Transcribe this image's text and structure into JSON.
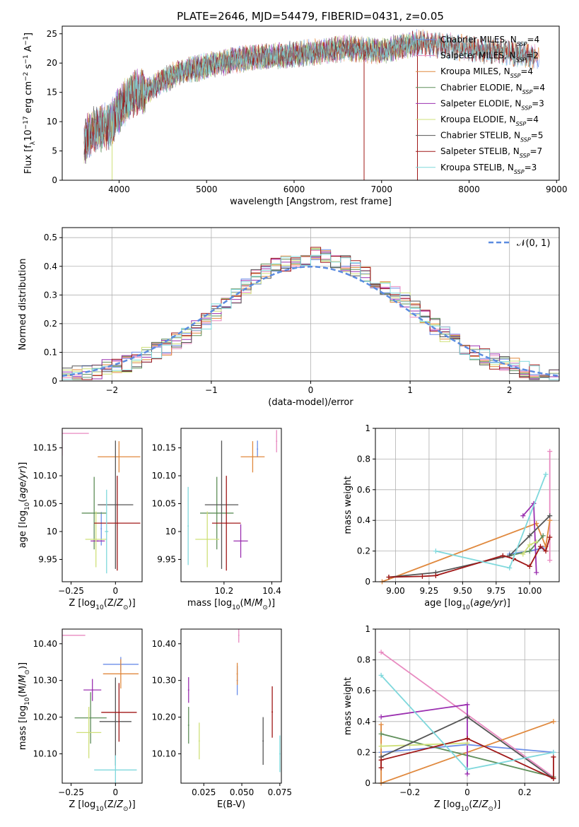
{
  "figure": {
    "title": "PLATE=2646, MJD=54479, FIBERID=0431, z=0.05"
  },
  "palette": {
    "Chabrier MILES": "#6b8ee8",
    "Salpeter MILES": "#e88ac0",
    "Kroupa MILES": "#e0893e",
    "Chabrier ELODIE": "#5f8f5a",
    "Salpeter ELODIE": "#9b30b0",
    "Kroupa ELODIE": "#cfe07a",
    "Chabrier STELIB": "#555555",
    "Salpeter STELIB": "#a01818",
    "Kroupa STELIB": "#7fd8dc",
    "gaussian": "#5b8be0"
  },
  "chart_data": [
    {
      "id": "spectrum",
      "type": "line",
      "xlabel": "wavelength [Angstrom, rest frame]",
      "ylabel": "Flux [f_λ10^-17 erg cm^-2 s^-1 A^-1]",
      "xlim": [
        3350,
        9030
      ],
      "ylim": [
        0,
        26.3
      ],
      "xticks": [
        4000,
        5000,
        6000,
        7000,
        8000,
        9000
      ],
      "yticks": [
        0,
        5,
        10,
        15,
        20,
        25
      ],
      "legend_position": "top-right",
      "legend": [
        {
          "model": "Chabrier MILES",
          "nssp": "4"
        },
        {
          "model": "Salpeter MILES",
          "nssp": "2"
        },
        {
          "model": "Kroupa MILES",
          "nssp": "4"
        },
        {
          "model": "Chabrier ELODIE",
          "nssp": "4"
        },
        {
          "model": "Salpeter ELODIE",
          "nssp": "3"
        },
        {
          "model": "Kroupa ELODIE",
          "nssp": "4"
        },
        {
          "model": "Chabrier STELIB",
          "nssp": "5"
        },
        {
          "model": "Salpeter STELIB",
          "nssp": "7"
        },
        {
          "model": "Kroupa STELIB",
          "nssp": "3"
        }
      ],
      "continuum": {
        "x": [
          3600,
          3700,
          3800,
          3900,
          4000,
          4100,
          4200,
          4300,
          4400,
          4500,
          4700,
          5000,
          5300,
          5600,
          6000,
          6300,
          6600,
          7000,
          7400,
          7700,
          8000,
          8300,
          8600,
          8800
        ],
        "y": [
          6.5,
          8.5,
          9.0,
          9.5,
          12.0,
          14.0,
          15.0,
          15.0,
          16.0,
          17.0,
          18.5,
          19.5,
          20.5,
          21.0,
          21.5,
          22.0,
          22.5,
          22.0,
          23.5,
          23.0,
          22.5,
          22.0,
          21.5,
          21.0
        ]
      }
    },
    {
      "id": "residuals",
      "type": "histogram",
      "xlabel": "(data-model)/error",
      "ylabel": "Normed distribution",
      "xlim": [
        -2.5,
        2.5
      ],
      "ylim": [
        0,
        0.535
      ],
      "xticks": [
        -2,
        -1,
        0,
        1,
        2
      ],
      "yticks": [
        0.0,
        0.1,
        0.2,
        0.3,
        0.4,
        0.5
      ],
      "grid": true,
      "legend_position": "top-right",
      "legend_label": "𝒩(0, 1)",
      "bin_edges": [
        -2.5,
        -2.4,
        -2.3,
        -2.2,
        -2.1,
        -2.0,
        -1.9,
        -1.8,
        -1.7,
        -1.6,
        -1.5,
        -1.4,
        -1.3,
        -1.2,
        -1.1,
        -1.0,
        -0.9,
        -0.8,
        -0.7,
        -0.6,
        -0.5,
        -0.4,
        -0.3,
        -0.2,
        -0.1,
        0.0,
        0.1,
        0.2,
        0.3,
        0.4,
        0.5,
        0.6,
        0.7,
        0.8,
        0.9,
        1.0,
        1.1,
        1.2,
        1.3,
        1.4,
        1.5,
        1.6,
        1.7,
        1.8,
        1.9,
        2.0,
        2.1,
        2.2,
        2.3,
        2.4,
        2.5
      ],
      "density_envelope": [
        0.02,
        0.025,
        0.03,
        0.035,
        0.045,
        0.05,
        0.06,
        0.075,
        0.09,
        0.105,
        0.12,
        0.14,
        0.16,
        0.185,
        0.21,
        0.24,
        0.27,
        0.3,
        0.33,
        0.36,
        0.38,
        0.4,
        0.41,
        0.42,
        0.43,
        0.44,
        0.43,
        0.42,
        0.41,
        0.39,
        0.37,
        0.35,
        0.33,
        0.3,
        0.28,
        0.25,
        0.22,
        0.19,
        0.165,
        0.14,
        0.12,
        0.1,
        0.085,
        0.07,
        0.06,
        0.05,
        0.04,
        0.03,
        0.025,
        0.02
      ]
    },
    {
      "id": "age_vs_Z",
      "type": "scatter",
      "xlabel": "Z [log10(Z/Z⊙)]",
      "ylabel": "age  [log10(age/yr)]",
      "xlim": [
        -0.3,
        0.15
      ],
      "ylim": [
        9.91,
        10.185
      ],
      "xticks": [
        -0.25,
        0.0
      ],
      "yticks": [
        9.95,
        10.0,
        10.05,
        10.1,
        10.15
      ],
      "points": [
        {
          "model": "Chabrier MILES",
          "x": -0.08,
          "xerr": 0.0,
          "y": 10.005,
          "yerr": 0.03
        },
        {
          "model": "Salpeter MILES",
          "x": -0.3,
          "xerr": 0.15,
          "y": 10.176,
          "yerr": 0.04
        },
        {
          "model": "Kroupa MILES",
          "x": 0.02,
          "xerr": 0.12,
          "y": 10.134,
          "yerr": 0.028
        },
        {
          "model": "Chabrier ELODIE",
          "x": -0.12,
          "xerr": 0.07,
          "y": 10.033,
          "yerr": 0.065
        },
        {
          "model": "Salpeter ELODIE",
          "x": -0.1,
          "xerr": 0.04,
          "y": 9.983,
          "yerr": 0.0
        },
        {
          "model": "Kroupa ELODIE",
          "x": -0.11,
          "xerr": 0.06,
          "y": 9.986,
          "yerr": 0.05
        },
        {
          "model": "Chabrier STELIB",
          "x": 0.0,
          "xerr": 0.1,
          "y": 10.048,
          "yerr": 0.115
        },
        {
          "model": "Salpeter STELIB",
          "x": 0.01,
          "xerr": 0.13,
          "y": 10.015,
          "yerr": 0.085
        },
        {
          "model": "Kroupa STELIB",
          "x": -0.05,
          "xerr": 0.01,
          "y": 10.0,
          "yerr": 0.075
        }
      ]
    },
    {
      "id": "age_vs_mass",
      "type": "scatter",
      "xlabel": "mass [log10(M/M⊙)]",
      "ylabel": "",
      "xlim": [
        10.02,
        10.44
      ],
      "ylim": [
        9.91,
        10.185
      ],
      "xticks": [
        10.2,
        10.4
      ],
      "yticks": [
        9.95,
        10.0,
        10.05,
        10.1,
        10.15
      ],
      "points": [
        {
          "model": "Chabrier MILES",
          "x": 10.34,
          "xerr": 0.0,
          "y": 10.148,
          "yerr": 0.015
        },
        {
          "model": "Salpeter MILES",
          "x": 10.42,
          "xerr": 0.0,
          "y": 10.162,
          "yerr": 0.02
        },
        {
          "model": "Kroupa MILES",
          "x": 10.32,
          "xerr": 0.05,
          "y": 10.134,
          "yerr": 0.028
        },
        {
          "model": "Chabrier ELODIE",
          "x": 10.17,
          "xerr": 0.07,
          "y": 10.033,
          "yerr": 0.065
        },
        {
          "model": "Salpeter ELODIE",
          "x": 10.27,
          "xerr": 0.03,
          "y": 9.983,
          "yerr": 0.03
        },
        {
          "model": "Kroupa ELODIE",
          "x": 10.13,
          "xerr": 0.05,
          "y": 9.986,
          "yerr": 0.05
        },
        {
          "model": "Chabrier STELIB",
          "x": 10.19,
          "xerr": 0.07,
          "y": 10.048,
          "yerr": 0.115
        },
        {
          "model": "Salpeter STELIB",
          "x": 10.21,
          "xerr": 0.06,
          "y": 10.015,
          "yerr": 0.085
        },
        {
          "model": "Kroupa STELIB",
          "x": 10.05,
          "xerr": 0.0,
          "y": 10.01,
          "yerr": 0.07
        }
      ]
    },
    {
      "id": "weight_vs_age",
      "type": "line",
      "xlabel": "age  [log10(age/yr)]",
      "ylabel": "mass weight",
      "xlim": [
        8.85,
        10.22
      ],
      "ylim": [
        0.0,
        1.0
      ],
      "xticks": [
        9.0,
        9.25,
        9.5,
        9.75,
        10.0
      ],
      "xticklabels": [
        "9.00",
        "9.25",
        "9.50",
        "9.75",
        "10.00"
      ],
      "yticks": [
        0.0,
        0.2,
        0.4,
        0.6,
        0.8,
        1.0
      ],
      "grid": true,
      "series": [
        {
          "model": "Chabrier MILES",
          "x": [
            9.85,
            10.0,
            10.1
          ],
          "y": [
            0.18,
            0.2,
            0.22
          ]
        },
        {
          "model": "Salpeter MILES",
          "x": [
            10.15,
            10.15
          ],
          "y": [
            0.14,
            0.85
          ]
        },
        {
          "model": "Kroupa MILES",
          "x": [
            8.9,
            10.05,
            10.12,
            10.15
          ],
          "y": [
            0.0,
            0.38,
            0.23,
            0.4
          ]
        },
        {
          "model": "Chabrier ELODIE",
          "x": [
            9.85,
            10.0,
            10.1
          ],
          "y": [
            0.17,
            0.2,
            0.3
          ]
        },
        {
          "model": "Salpeter ELODIE",
          "x": [
            9.95,
            10.03,
            10.05
          ],
          "y": [
            0.43,
            0.51,
            0.06
          ]
        },
        {
          "model": "Kroupa ELODIE",
          "x": [
            9.95,
            10.0,
            10.05
          ],
          "y": [
            0.18,
            0.24,
            0.26
          ]
        },
        {
          "model": "Chabrier STELIB",
          "x": [
            8.95,
            9.3,
            9.85,
            10.0,
            10.15
          ],
          "y": [
            0.03,
            0.06,
            0.17,
            0.3,
            0.43
          ]
        },
        {
          "model": "Salpeter STELIB",
          "x": [
            8.95,
            9.2,
            9.3,
            9.8,
            9.88,
            10.0,
            10.08,
            10.12,
            10.15
          ],
          "y": [
            0.03,
            0.035,
            0.04,
            0.17,
            0.15,
            0.1,
            0.23,
            0.2,
            0.29
          ]
        },
        {
          "model": "Kroupa STELIB",
          "x": [
            9.3,
            9.85,
            10.12
          ],
          "y": [
            0.2,
            0.09,
            0.7
          ]
        }
      ]
    },
    {
      "id": "mass_vs_Z",
      "type": "scatter",
      "xlabel": "Z [log10(Z/Z⊙)]",
      "ylabel": "mass [log10(M/M⊙)]",
      "xlim": [
        -0.3,
        0.15
      ],
      "ylim": [
        10.02,
        10.44
      ],
      "xticks": [
        -0.25,
        0.0
      ],
      "yticks": [
        10.1,
        10.2,
        10.3,
        10.4
      ],
      "points": [
        {
          "model": "Chabrier MILES",
          "x": 0.03,
          "xerr": 0.1,
          "y": 10.344,
          "yerr": 0.02
        },
        {
          "model": "Salpeter MILES",
          "x": -0.3,
          "xerr": 0.13,
          "y": 10.423,
          "yerr": 0.02
        },
        {
          "model": "Kroupa MILES",
          "x": 0.03,
          "xerr": 0.1,
          "y": 10.318,
          "yerr": 0.04
        },
        {
          "model": "Chabrier ELODIE",
          "x": -0.14,
          "xerr": 0.09,
          "y": 10.198,
          "yerr": 0.07
        },
        {
          "model": "Salpeter ELODIE",
          "x": -0.13,
          "xerr": 0.05,
          "y": 10.274,
          "yerr": 0.03
        },
        {
          "model": "Kroupa ELODIE",
          "x": -0.15,
          "xerr": 0.07,
          "y": 10.158,
          "yerr": 0.07
        },
        {
          "model": "Chabrier STELIB",
          "x": 0.0,
          "xerr": 0.09,
          "y": 10.188,
          "yerr": 0.12
        },
        {
          "model": "Salpeter STELIB",
          "x": 0.02,
          "xerr": 0.1,
          "y": 10.213,
          "yerr": 0.08
        },
        {
          "model": "Kroupa STELIB",
          "x": 0.0,
          "xerr": 0.12,
          "y": 10.056,
          "yerr": 0.04
        }
      ]
    },
    {
      "id": "mass_vs_ebv",
      "type": "scatter",
      "xlabel": "E(B-V)",
      "ylabel": "",
      "xlim": [
        0.01,
        0.076
      ],
      "ylim": [
        10.02,
        10.44
      ],
      "xticks": [
        0.025,
        0.05,
        0.075
      ],
      "xticklabels": [
        "0.025",
        "0.050",
        "0.075"
      ],
      "yticks": [
        10.1,
        10.2,
        10.3,
        10.4
      ],
      "points": [
        {
          "model": "Chabrier MILES",
          "x": 0.047,
          "xerr": 0.0,
          "y": 10.3,
          "yerr": 0.04
        },
        {
          "model": "Salpeter MILES",
          "x": 0.048,
          "xerr": 0.0,
          "y": 10.423,
          "yerr": 0.02
        },
        {
          "model": "Kroupa MILES",
          "x": 0.047,
          "xerr": 0.0,
          "y": 10.318,
          "yerr": 0.03
        },
        {
          "model": "Chabrier ELODIE",
          "x": 0.015,
          "xerr": 0.0,
          "y": 10.178,
          "yerr": 0.05
        },
        {
          "model": "Salpeter ELODIE",
          "x": 0.015,
          "xerr": 0.0,
          "y": 10.274,
          "yerr": 0.035
        },
        {
          "model": "Kroupa ELODIE",
          "x": 0.022,
          "xerr": 0.0,
          "y": 10.135,
          "yerr": 0.05
        },
        {
          "model": "Chabrier STELIB",
          "x": 0.064,
          "xerr": 0.0,
          "y": 10.135,
          "yerr": 0.065
        },
        {
          "model": "Salpeter STELIB",
          "x": 0.07,
          "xerr": 0.0,
          "y": 10.214,
          "yerr": 0.07
        },
        {
          "model": "Kroupa STELIB",
          "x": 0.075,
          "xerr": 0.0,
          "y": 10.1,
          "yerr": 0.05
        }
      ]
    },
    {
      "id": "weight_vs_Z",
      "type": "line",
      "xlabel": "Z [log10(Z/Z⊙)]",
      "ylabel": "mass weight",
      "xlim": [
        -0.32,
        0.32
      ],
      "ylim": [
        0.0,
        1.0
      ],
      "xticks": [
        -0.2,
        0.0,
        0.2
      ],
      "yticks": [
        0.0,
        0.2,
        0.4,
        0.6,
        0.8,
        1.0
      ],
      "grid": true,
      "series": [
        {
          "model": "Chabrier MILES",
          "x": [
            -0.3,
            0.0,
            0.3
          ],
          "y": [
            0.2,
            0.25,
            0.2
          ]
        },
        {
          "model": "Salpeter MILES",
          "x": [
            -0.3,
            0.3
          ],
          "y": [
            0.85,
            0.04
          ]
        },
        {
          "model": "Kroupa MILES",
          "x": [
            -0.3,
            -0.3,
            0.3
          ],
          "y": [
            0.38,
            0.0,
            0.4
          ]
        },
        {
          "model": "Chabrier ELODIE",
          "x": [
            -0.3,
            0.0,
            0.3
          ],
          "y": [
            0.32,
            0.18,
            0.04
          ]
        },
        {
          "model": "Salpeter ELODIE",
          "x": [
            -0.3,
            0.0,
            0.0
          ],
          "y": [
            0.43,
            0.51,
            0.06
          ]
        },
        {
          "model": "Kroupa ELODIE",
          "x": [
            -0.3,
            0.0
          ],
          "y": [
            0.24,
            0.26
          ]
        },
        {
          "model": "Chabrier STELIB",
          "x": [
            -0.3,
            0.0,
            0.3
          ],
          "y": [
            0.17,
            0.43,
            0.03
          ]
        },
        {
          "model": "Salpeter STELIB",
          "x": [
            -0.3,
            -0.3,
            0.0,
            0.3,
            0.3
          ],
          "y": [
            0.1,
            0.15,
            0.29,
            0.03,
            0.17
          ]
        },
        {
          "model": "Kroupa STELIB",
          "x": [
            -0.3,
            0.0,
            0.3
          ],
          "y": [
            0.7,
            0.09,
            0.2
          ]
        }
      ]
    }
  ]
}
